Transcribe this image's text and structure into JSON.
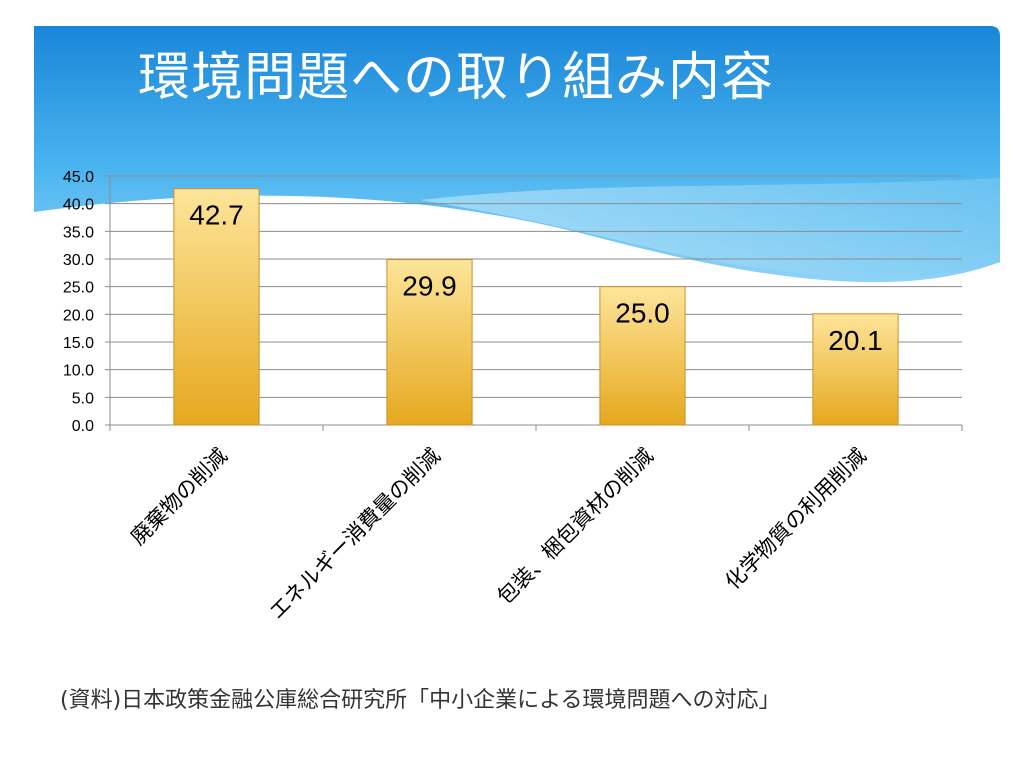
{
  "slide": {
    "title": "環境問題への取り組み内容",
    "source_note": "(資料)日本政策金融公庫総合研究所「中小企業による環境問題への対応」"
  },
  "colors": {
    "header_blue_top": "#1a86d9",
    "header_blue_mid": "#49b4ef",
    "wave_light": "#bfe6fa",
    "bar_top": "#fde59a",
    "bar_bottom": "#e6a81e",
    "bar_outline": "#c8932a",
    "grid": "#8c8c8c"
  },
  "chart_data": {
    "type": "bar",
    "categories": [
      "廃棄物の削減",
      "エネルギー消費量の削減",
      "包装、梱包資材の削減",
      "化学物質の利用削減"
    ],
    "values": [
      42.7,
      29.9,
      25.0,
      20.1
    ],
    "data_labels": [
      "42.7",
      "29.9",
      "25.0",
      "20.1"
    ],
    "y_ticks": [
      "0.0",
      "5.0",
      "10.0",
      "15.0",
      "20.0",
      "25.0",
      "30.0",
      "35.0",
      "40.0",
      "45.0"
    ],
    "ylim": [
      0,
      45
    ],
    "grid": true,
    "legend": "none",
    "xlabel": "",
    "ylabel": ""
  }
}
